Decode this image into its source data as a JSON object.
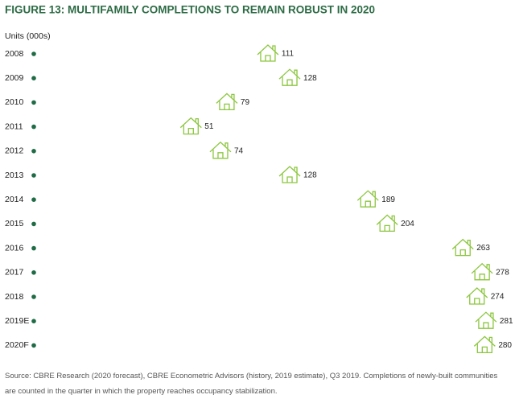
{
  "chart_data": {
    "type": "lollipop",
    "title": "FIGURE 13: MULTIFAMILY COMPLETIONS TO REMAIN ROBUST IN 2020",
    "unit_label": "Units (000s)",
    "categories": [
      "2008",
      "2009",
      "2010",
      "2011",
      "2012",
      "2013",
      "2014",
      "2015",
      "2016",
      "2017",
      "2018",
      "2019E",
      "2020F"
    ],
    "values": [
      111,
      128,
      79,
      51,
      74,
      128,
      189,
      204,
      263,
      278,
      274,
      281,
      280
    ],
    "color": "#8cc63f",
    "source": "Source: CBRE Research (2020 forecast), CBRE Econometric Advisors (history, 2019 estimate), Q3 2019. Completions of newly-built communities are counted in the quarter in which the property reaches occupancy stabilization."
  }
}
